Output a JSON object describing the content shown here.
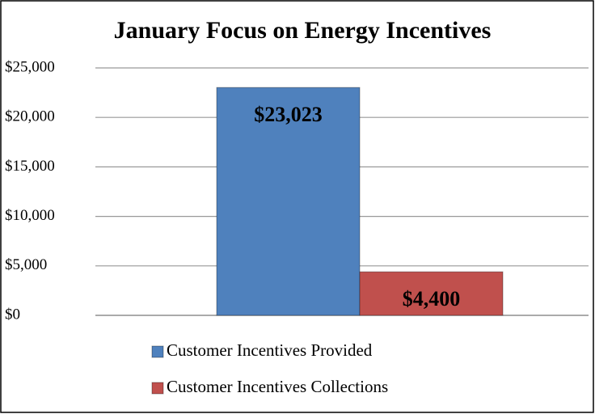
{
  "chart_data": {
    "type": "bar",
    "title": "January Focus on Energy Incentives",
    "categories": [
      null
    ],
    "series": [
      {
        "name": "Customer Incentives Provided",
        "color": "#4f81bd",
        "values": [
          23023
        ],
        "value_labels": [
          "$23,023"
        ]
      },
      {
        "name": "Customer Incentives Collections",
        "color": "#c0504d",
        "values": [
          4400
        ],
        "value_labels": [
          "$4,400"
        ]
      }
    ],
    "ylim": [
      0,
      25000
    ],
    "yticks": [
      {
        "value": 0,
        "label": "$0"
      },
      {
        "value": 5000,
        "label": "$5,000"
      },
      {
        "value": 10000,
        "label": "$10,000"
      },
      {
        "value": 15000,
        "label": "$15,000"
      },
      {
        "value": 20000,
        "label": "$20,000"
      },
      {
        "value": 25000,
        "label": "$25,000"
      }
    ],
    "grid": true,
    "legend": "bottom"
  }
}
